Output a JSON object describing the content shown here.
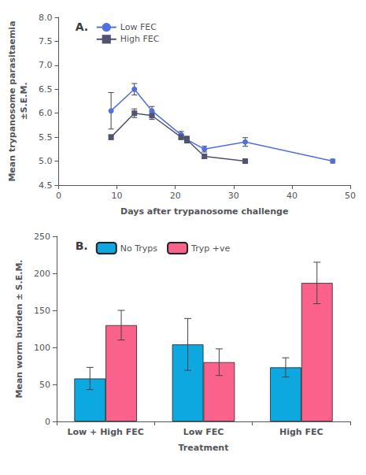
{
  "chart_data": [
    {
      "type": "line",
      "title": "A.",
      "xlabel": "Days after trypanosome challenge",
      "ylabel": "Mean trypanosome parasitaemia\n±S.E.M.",
      "xlim": [
        0,
        50
      ],
      "xticks": [
        0,
        10,
        20,
        30,
        40,
        50
      ],
      "ylim": [
        4.5,
        8.0
      ],
      "yticks": [
        4.5,
        {
          "value": 5,
          "label": "5.0"
        },
        5.5,
        {
          "value": 6,
          "label": "6.0"
        },
        6.5,
        {
          "value": 7,
          "label": "7.0"
        },
        7.5,
        {
          "value": 8,
          "label": "8.0"
        }
      ],
      "grid": false,
      "legend": "upper left",
      "series": [
        {
          "name": "Low FEC",
          "marker": "circle",
          "line_style": "solid",
          "x": [
            9,
            13,
            16,
            21,
            22,
            25,
            32,
            47
          ],
          "values": [
            6.05,
            6.5,
            6.05,
            5.55,
            5.45,
            5.25,
            5.4,
            5.0
          ],
          "yerr": [
            0.38,
            0.12,
            0.09,
            0.07,
            0.07,
            0.06,
            0.09,
            0.04
          ]
        },
        {
          "name": "High FEC",
          "marker": "square",
          "line_style": "solid",
          "x": [
            9,
            13,
            16,
            21,
            22,
            25,
            32
          ],
          "values": [
            5.5,
            6.0,
            5.95,
            5.5,
            5.45,
            5.1,
            5.0
          ],
          "yerr": [
            0.05,
            0.09,
            0.08,
            0.05,
            0.06,
            0.05,
            0.04
          ]
        }
      ]
    },
    {
      "type": "bar",
      "title": "B.",
      "xlabel": "Treatment",
      "ylabel": "Mean worm burden ± S.E.M.",
      "categories": [
        "Low + High FEC",
        "Low FEC",
        "High FEC"
      ],
      "ylim": [
        0,
        250
      ],
      "yticks": [
        0,
        50,
        100,
        150,
        200,
        250
      ],
      "grid": false,
      "legend": "upper left",
      "series": [
        {
          "name": "No Tryps",
          "values": [
            58,
            104,
            73
          ],
          "yerr": [
            15,
            35,
            13
          ]
        },
        {
          "name": "Tryp +ve",
          "values": [
            130,
            80,
            187
          ],
          "yerr": [
            20,
            18,
            28
          ]
        }
      ]
    }
  ]
}
